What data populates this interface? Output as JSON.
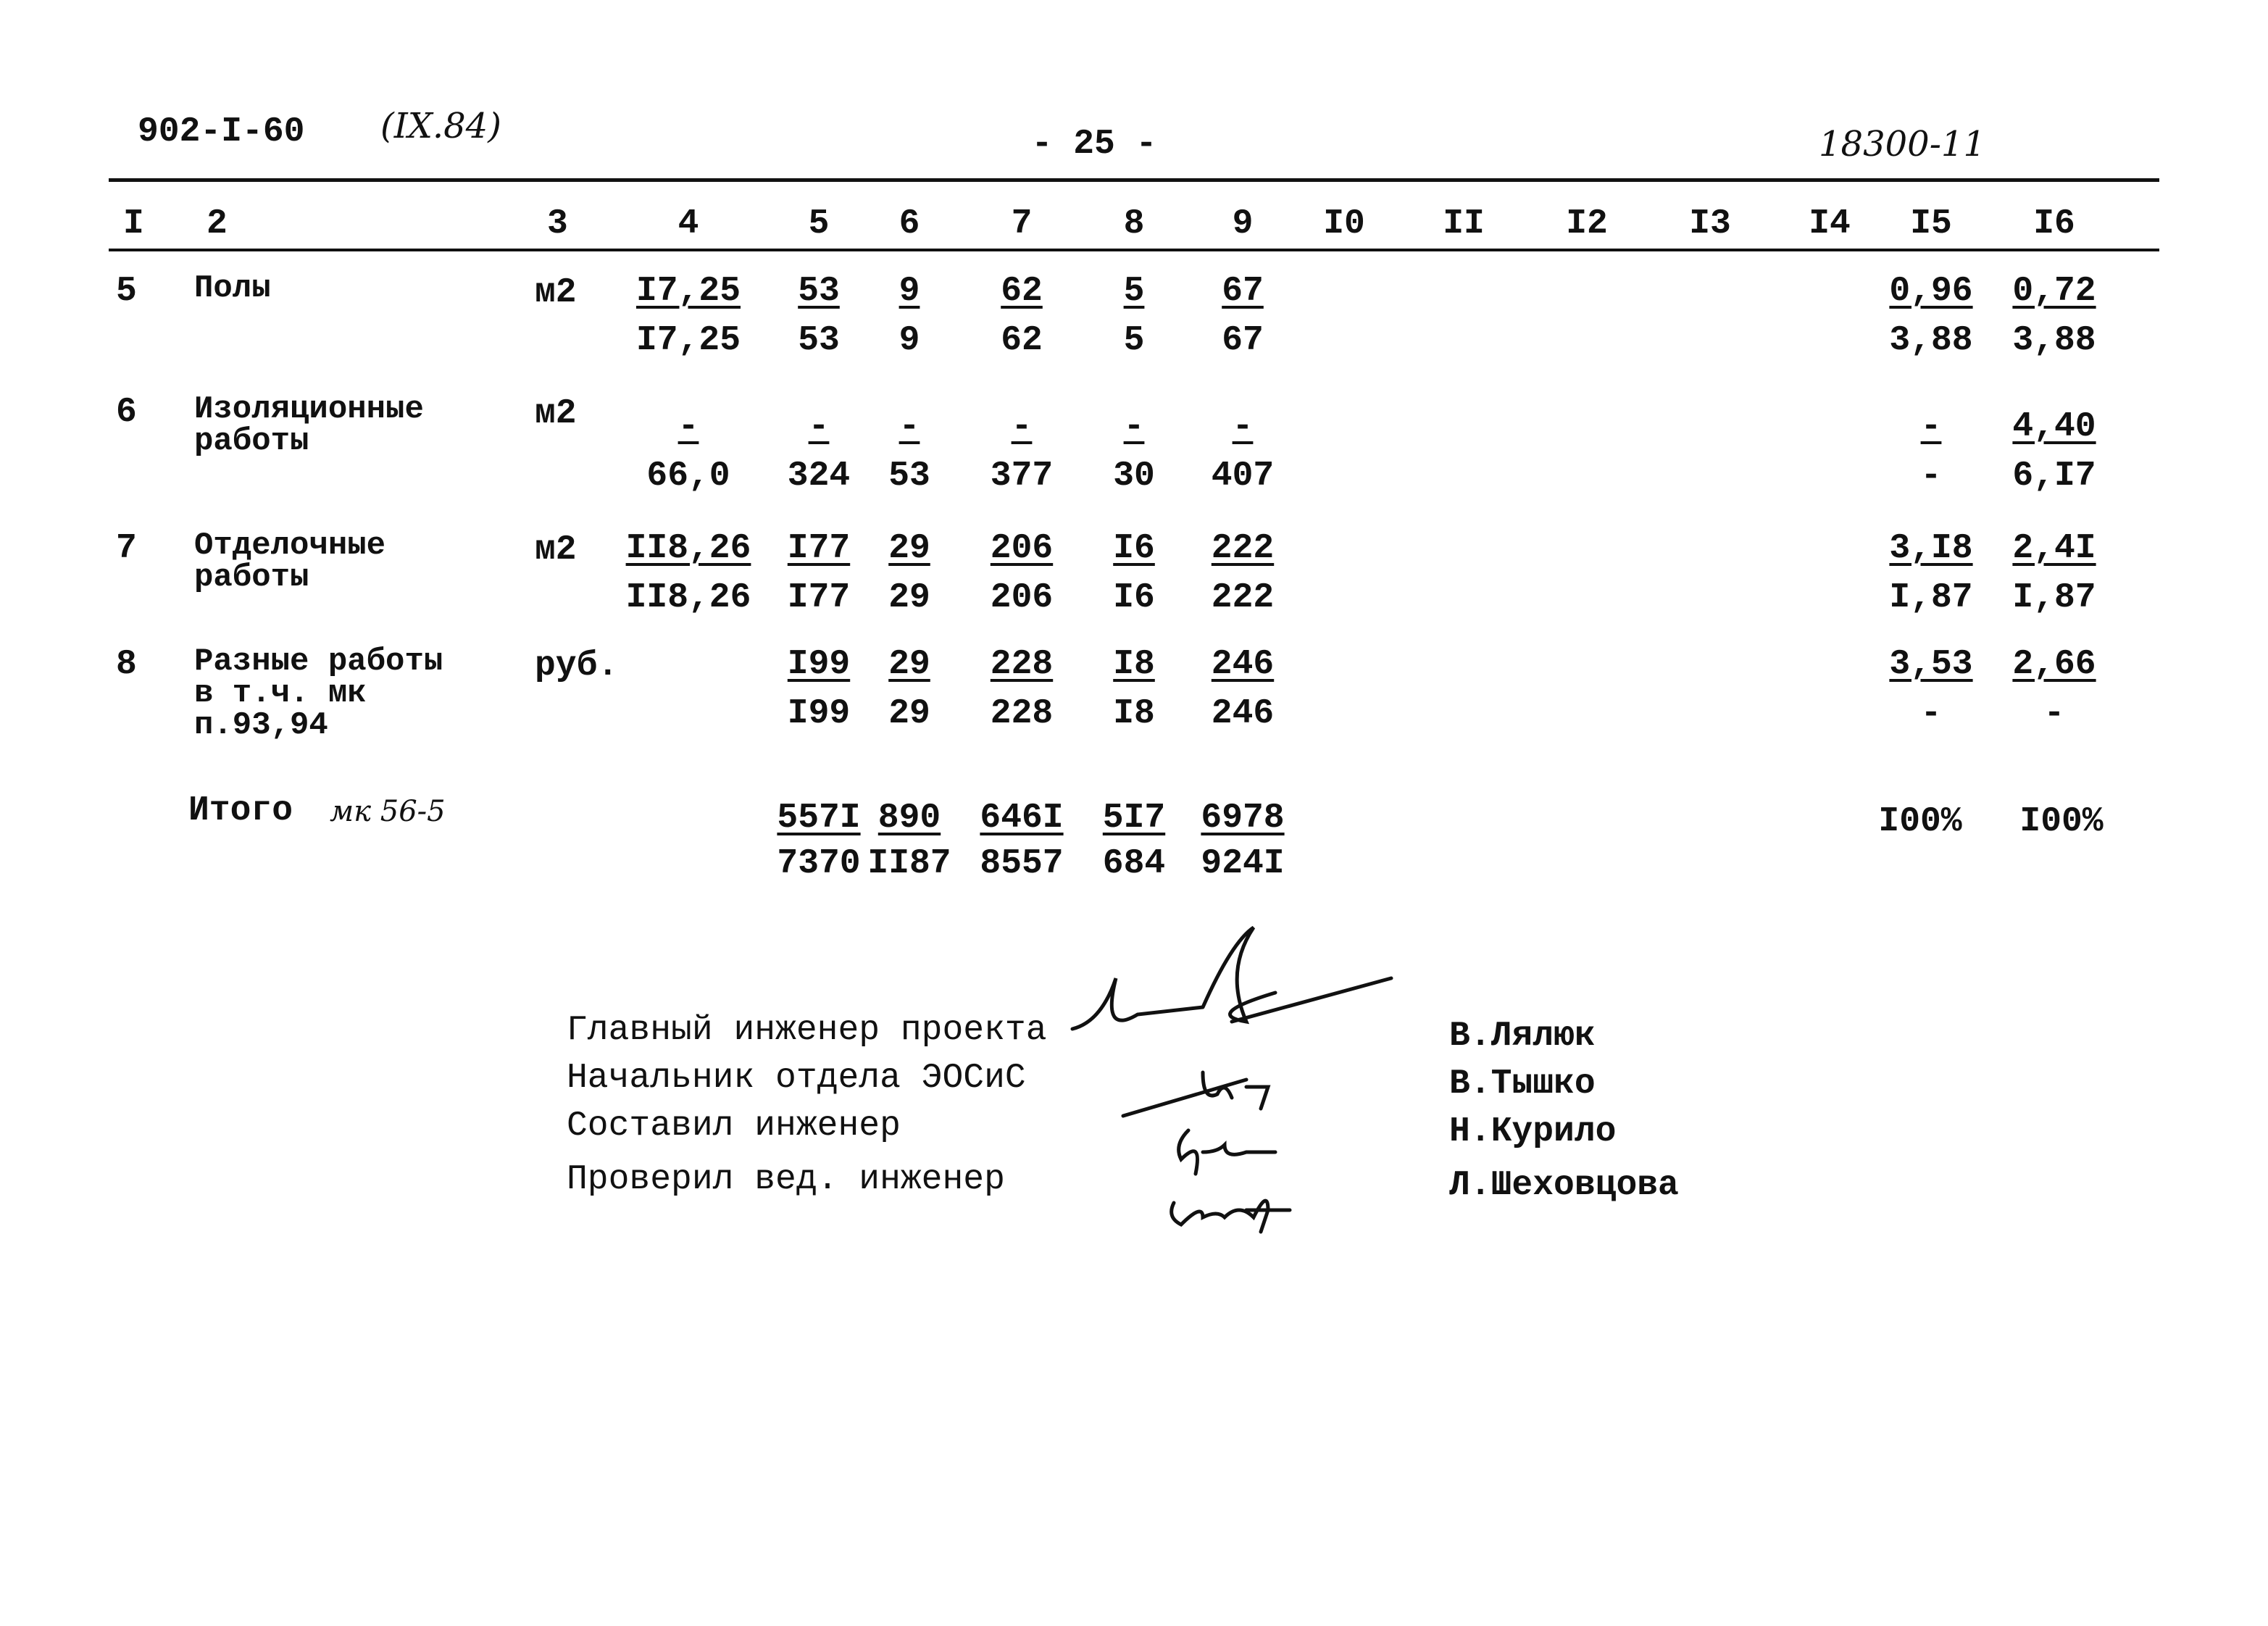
{
  "header": {
    "doc_code": "902-I-60",
    "date_code": "(IX.84)",
    "page": "- 25 -",
    "archive_no": "18300-11"
  },
  "columns": [
    "I",
    "2",
    "3",
    "4",
    "5",
    "6",
    "7",
    "8",
    "9",
    "I0",
    "II",
    "I2",
    "I3",
    "I4",
    "I5",
    "I6"
  ],
  "rows": [
    {
      "no": "5",
      "name": [
        "Полы"
      ],
      "unit": "м2",
      "c4": [
        "I7,25",
        "I7,25"
      ],
      "c5": [
        "53",
        "53"
      ],
      "c6": [
        "9",
        "9"
      ],
      "c7": [
        "62",
        "62"
      ],
      "c8": [
        "5",
        "5"
      ],
      "c9": [
        "67",
        "67"
      ],
      "c15": [
        "0,96",
        "3,88"
      ],
      "c16": [
        "0,72",
        "3,88"
      ]
    },
    {
      "no": "6",
      "name": [
        "Изоляционные",
        "работы"
      ],
      "unit": "м2",
      "c4": [
        "-",
        "66,0"
      ],
      "c5": [
        "-",
        "324"
      ],
      "c6": [
        "-",
        "53"
      ],
      "c7": [
        "-",
        "377"
      ],
      "c8": [
        "-",
        "30"
      ],
      "c9": [
        "-",
        "407"
      ],
      "c15": [
        "-",
        "-"
      ],
      "c16": [
        "4,40",
        "6,I7"
      ]
    },
    {
      "no": "7",
      "name": [
        "Отделочные",
        "работы"
      ],
      "unit": "м2",
      "c4": [
        "II8,26",
        "II8,26"
      ],
      "c5": [
        "I77",
        "I77"
      ],
      "c6": [
        "29",
        "29"
      ],
      "c7": [
        "206",
        "206"
      ],
      "c8": [
        "I6",
        "I6"
      ],
      "c9": [
        "222",
        "222"
      ],
      "c15": [
        "3,I8",
        "I,87"
      ],
      "c16": [
        "2,4I",
        "I,87"
      ]
    },
    {
      "no": "8",
      "name": [
        "Разные работы",
        "в т.ч. мк",
        "п.93,94"
      ],
      "unit": "руб.",
      "c4": [
        "",
        ""
      ],
      "c5": [
        "I99",
        "I99"
      ],
      "c6": [
        "29",
        "29"
      ],
      "c7": [
        "228",
        "228"
      ],
      "c8": [
        "I8",
        "I8"
      ],
      "c9": [
        "246",
        "246"
      ],
      "c15": [
        "3,53",
        "-"
      ],
      "c16": [
        "2,66",
        "-"
      ]
    }
  ],
  "total": {
    "label": "Итого",
    "note": "мк 56-5",
    "c5": [
      "557I",
      "7370"
    ],
    "c6": [
      "890",
      "II87"
    ],
    "c7": [
      "646I",
      "8557"
    ],
    "c8": [
      "5I7",
      "684"
    ],
    "c9": [
      "6978",
      "924I"
    ],
    "c15": "I00%",
    "c16": "I00%"
  },
  "signatures": [
    {
      "role": "Главный инженер проекта",
      "name": "В.Лялюк"
    },
    {
      "role": "Начальник отдела ЭОСиС",
      "name": "В.Тышко"
    },
    {
      "role": "Составил инженер",
      "name": "Н.Курило"
    },
    {
      "role": "Проверил вед. инженер",
      "name": "Л.Шеховцова"
    }
  ]
}
